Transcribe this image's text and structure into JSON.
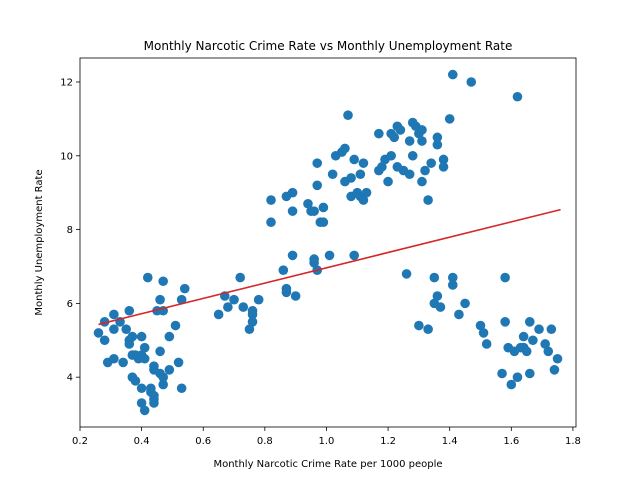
{
  "chart_data": {
    "type": "scatter",
    "title": "Monthly Narcotic Crime Rate vs Monthly Unemployment Rate",
    "xlabel": "Monthly Narcotic Crime Rate per 1000 people",
    "ylabel": "Monthly Unemployment Rate",
    "xlim": [
      0.2,
      1.81
    ],
    "ylim": [
      2.65,
      12.65
    ],
    "xticks": [
      0.2,
      0.4,
      0.6,
      0.8,
      1.0,
      1.2,
      1.4,
      1.6,
      1.8
    ],
    "xtick_labels": [
      "0.2",
      "0.4",
      "0.6",
      "0.8",
      "1.0",
      "1.2",
      "1.4",
      "1.6",
      "1.8"
    ],
    "yticks": [
      4,
      6,
      8,
      10,
      12
    ],
    "ytick_labels": [
      "4",
      "6",
      "8",
      "10",
      "12"
    ],
    "grid": false,
    "legend": "none",
    "colors": {
      "points": "#1f77b4",
      "trendline": "#d62728",
      "axes": "#000000",
      "background": "#ffffff"
    },
    "points": [
      [
        0.26,
        5.2
      ],
      [
        0.28,
        5.5
      ],
      [
        0.28,
        5.0
      ],
      [
        0.29,
        4.4
      ],
      [
        0.31,
        4.5
      ],
      [
        0.31,
        5.3
      ],
      [
        0.31,
        5.7
      ],
      [
        0.33,
        5.5
      ],
      [
        0.34,
        4.4
      ],
      [
        0.35,
        5.3
      ],
      [
        0.36,
        5.8
      ],
      [
        0.36,
        5.0
      ],
      [
        0.36,
        4.9
      ],
      [
        0.37,
        5.1
      ],
      [
        0.37,
        4.6
      ],
      [
        0.37,
        4.0
      ],
      [
        0.38,
        4.6
      ],
      [
        0.38,
        3.9
      ],
      [
        0.39,
        4.5
      ],
      [
        0.4,
        4.6
      ],
      [
        0.4,
        5.1
      ],
      [
        0.4,
        3.7
      ],
      [
        0.4,
        3.3
      ],
      [
        0.41,
        4.5
      ],
      [
        0.41,
        4.8
      ],
      [
        0.41,
        3.1
      ],
      [
        0.42,
        6.7
      ],
      [
        0.43,
        3.6
      ],
      [
        0.43,
        3.7
      ],
      [
        0.44,
        3.3
      ],
      [
        0.44,
        3.4
      ],
      [
        0.44,
        3.5
      ],
      [
        0.44,
        4.3
      ],
      [
        0.44,
        4.2
      ],
      [
        0.45,
        5.8
      ],
      [
        0.46,
        4.1
      ],
      [
        0.46,
        6.1
      ],
      [
        0.46,
        4.7
      ],
      [
        0.47,
        4.0
      ],
      [
        0.47,
        5.8
      ],
      [
        0.47,
        6.6
      ],
      [
        0.47,
        3.8
      ],
      [
        0.49,
        4.2
      ],
      [
        0.49,
        5.1
      ],
      [
        0.51,
        5.4
      ],
      [
        0.52,
        4.4
      ],
      [
        0.53,
        6.1
      ],
      [
        0.53,
        3.7
      ],
      [
        0.54,
        6.4
      ],
      [
        0.65,
        5.7
      ],
      [
        0.67,
        6.2
      ],
      [
        0.68,
        5.9
      ],
      [
        0.7,
        6.1
      ],
      [
        0.72,
        6.7
      ],
      [
        0.73,
        5.9
      ],
      [
        0.75,
        5.3
      ],
      [
        0.76,
        5.5
      ],
      [
        0.76,
        5.7
      ],
      [
        0.76,
        5.8
      ],
      [
        0.78,
        6.1
      ],
      [
        0.82,
        8.8
      ],
      [
        0.82,
        8.2
      ],
      [
        0.86,
        6.9
      ],
      [
        0.87,
        8.9
      ],
      [
        0.87,
        6.4
      ],
      [
        0.87,
        6.3
      ],
      [
        0.89,
        9.0
      ],
      [
        0.89,
        7.3
      ],
      [
        0.89,
        8.5
      ],
      [
        0.9,
        6.2
      ],
      [
        0.94,
        8.7
      ],
      [
        0.95,
        8.5
      ],
      [
        0.96,
        7.2
      ],
      [
        0.96,
        8.5
      ],
      [
        0.96,
        7.1
      ],
      [
        0.97,
        6.9
      ],
      [
        0.97,
        9.8
      ],
      [
        0.97,
        9.2
      ],
      [
        0.98,
        8.2
      ],
      [
        0.99,
        8.6
      ],
      [
        0.99,
        8.2
      ],
      [
        1.01,
        7.3
      ],
      [
        1.02,
        9.5
      ],
      [
        1.03,
        10.0
      ],
      [
        1.05,
        10.1
      ],
      [
        1.06,
        10.2
      ],
      [
        1.06,
        9.3
      ],
      [
        1.07,
        11.1
      ],
      [
        1.08,
        9.4
      ],
      [
        1.08,
        8.9
      ],
      [
        1.09,
        9.9
      ],
      [
        1.09,
        7.3
      ],
      [
        1.1,
        9.0
      ],
      [
        1.11,
        8.9
      ],
      [
        1.11,
        9.5
      ],
      [
        1.12,
        9.8
      ],
      [
        1.12,
        8.8
      ],
      [
        1.13,
        9.0
      ],
      [
        1.17,
        10.6
      ],
      [
        1.17,
        9.6
      ],
      [
        1.18,
        9.7
      ],
      [
        1.19,
        9.9
      ],
      [
        1.2,
        9.3
      ],
      [
        1.21,
        10.0
      ],
      [
        1.21,
        10.6
      ],
      [
        1.22,
        10.5
      ],
      [
        1.23,
        10.8
      ],
      [
        1.23,
        9.7
      ],
      [
        1.24,
        10.7
      ],
      [
        1.25,
        9.6
      ],
      [
        1.26,
        6.8
      ],
      [
        1.27,
        10.4
      ],
      [
        1.27,
        9.5
      ],
      [
        1.28,
        10.0
      ],
      [
        1.29,
        10.8
      ],
      [
        1.3,
        5.4
      ],
      [
        1.3,
        10.6
      ],
      [
        1.31,
        9.3
      ],
      [
        1.31,
        10.7
      ],
      [
        1.31,
        10.4
      ],
      [
        1.32,
        9.6
      ],
      [
        1.33,
        8.8
      ],
      [
        1.33,
        5.3
      ],
      [
        1.34,
        9.8
      ],
      [
        1.35,
        6.0
      ],
      [
        1.35,
        6.7
      ],
      [
        1.36,
        10.3
      ],
      [
        1.36,
        10.5
      ],
      [
        1.36,
        6.2
      ],
      [
        1.37,
        5.9
      ],
      [
        1.38,
        9.7
      ],
      [
        1.38,
        9.9
      ],
      [
        1.4,
        11.0
      ],
      [
        1.41,
        12.2
      ],
      [
        1.41,
        6.7
      ],
      [
        1.41,
        6.5
      ],
      [
        1.43,
        5.7
      ],
      [
        1.45,
        6.0
      ],
      [
        1.47,
        12.0
      ],
      [
        1.5,
        5.4
      ],
      [
        1.51,
        5.2
      ],
      [
        1.52,
        4.9
      ],
      [
        1.57,
        4.1
      ],
      [
        1.58,
        6.7
      ],
      [
        1.58,
        5.5
      ],
      [
        1.59,
        4.8
      ],
      [
        1.61,
        4.7
      ],
      [
        1.62,
        11.6
      ],
      [
        1.62,
        4.0
      ],
      [
        1.63,
        4.8
      ],
      [
        1.64,
        4.8
      ],
      [
        1.64,
        4.8
      ],
      [
        1.64,
        5.1
      ],
      [
        1.65,
        4.7
      ],
      [
        1.66,
        4.1
      ],
      [
        1.66,
        5.5
      ],
      [
        1.67,
        5.0
      ],
      [
        1.69,
        5.3
      ],
      [
        1.71,
        4.9
      ],
      [
        1.72,
        4.7
      ],
      [
        1.73,
        5.3
      ],
      [
        1.74,
        4.2
      ],
      [
        1.75,
        4.5
      ],
      [
        1.6,
        3.8
      ],
      [
        1.28,
        10.9
      ]
    ],
    "trendline": {
      "x": [
        0.26,
        1.76
      ],
      "y": [
        5.43,
        8.54
      ]
    }
  }
}
